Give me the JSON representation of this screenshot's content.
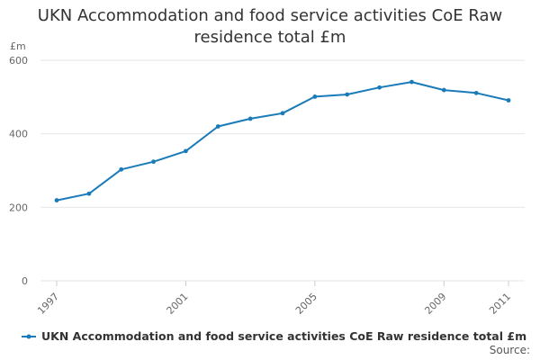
{
  "title": {
    "line1": "UKN Accommodation and food service activities CoE Raw",
    "line2": "residence total £m"
  },
  "legend": {
    "label": "UKN Accommodation and food service activities CoE Raw residence total £m"
  },
  "source": "Source:",
  "colors": {
    "series": "#1a7bb9",
    "grid": "#e6e6e6",
    "axis_text": "#666666"
  },
  "chart_data": {
    "type": "line",
    "title": "UKN Accommodation and food service activities CoE Raw residence total £m",
    "xlabel": "",
    "ylabel": "£m",
    "ylim": [
      0,
      600
    ],
    "yticks": [
      0,
      200,
      400,
      600
    ],
    "xlim": [
      1997,
      2011
    ],
    "xticks": [
      1997,
      2001,
      2005,
      2009,
      2011
    ],
    "grid": true,
    "legend_position": "bottom-left",
    "series": [
      {
        "name": "UKN Accommodation and food service activities CoE Raw residence total £m",
        "x": [
          1997,
          1998,
          1999,
          2000,
          2001,
          2002,
          2003,
          2004,
          2005,
          2006,
          2007,
          2008,
          2009,
          2010,
          2011
        ],
        "values": [
          219,
          237,
          303,
          324,
          353,
          420,
          441,
          456,
          501,
          507,
          526,
          541,
          519,
          511,
          491
        ]
      }
    ]
  }
}
